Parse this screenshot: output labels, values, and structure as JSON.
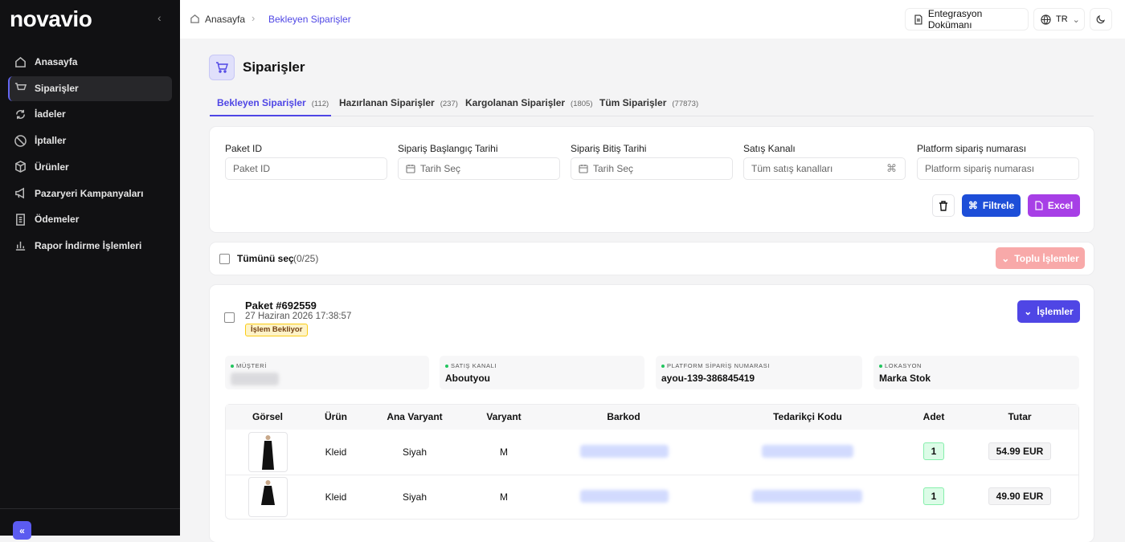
{
  "sidebar": {
    "logo": "novavio",
    "nav": [
      "Anasayfa",
      "Siparişler",
      "İadeler",
      "İptaller",
      "Ürünler",
      "Pazaryeri Kampanyaları",
      "Ödemeler",
      "Rapor İndirme İşlemleri"
    ]
  },
  "topbar": {
    "breadcrumb": [
      "Anasayfa",
      "Bekleyen Siparişler"
    ],
    "docs": "Entegrasyon Dokümanı",
    "lang": "TR"
  },
  "page": {
    "title": "Siparişler",
    "tabs": [
      {
        "label": "Bekleyen Siparişler",
        "count": "(112)"
      },
      {
        "label": "Hazırlanan Siparişler",
        "count": "(237)"
      },
      {
        "label": "Kargolanan Siparişler",
        "count": "(1805)"
      },
      {
        "label": "Tüm Siparişler",
        "count": "(77873)"
      }
    ]
  },
  "filters": {
    "fields": [
      {
        "label": "Paket ID",
        "placeholder": "Paket ID"
      },
      {
        "label": "Sipariş Başlangıç Tarihi",
        "placeholder": "Tarih Seç"
      },
      {
        "label": "Sipariş Bitiş Tarihi",
        "placeholder": "Tarih Seç"
      },
      {
        "label": "Satış Kanalı",
        "placeholder": "Tüm satış kanalları"
      },
      {
        "label": "Platform sipariş numarası",
        "placeholder": "Platform sipariş numarası"
      }
    ],
    "filter_button": "Filtrele",
    "excel_button": "Excel"
  },
  "bulk": {
    "select_all": "Tümünü seç",
    "count": "(0/25)",
    "actions": "Toplu İşlemler"
  },
  "order": {
    "title": "Paket #692559",
    "date": "27 Haziran 2026 17:38:57",
    "status": "İşlem Bekliyor",
    "actions": "İşlemler",
    "info": [
      {
        "label": "MÜŞTERİ"
      },
      {
        "label": "SATIŞ KANALI",
        "value": "Aboutyou"
      },
      {
        "label": "PLATFORM SİPARİŞ NUMARASI",
        "value": "ayou-139-386845419"
      },
      {
        "label": "LOKASYON",
        "value": "Marka Stok"
      }
    ],
    "table": {
      "columns": [
        "Görsel",
        "Ürün",
        "Ana Varyant",
        "Varyant",
        "Barkod",
        "Tedarikçi Kodu",
        "Adet",
        "Tutar"
      ],
      "rows": [
        {
          "product": "Kleid",
          "main_variant": "Siyah",
          "variant": "M",
          "quantity": 1,
          "total": "54.99 EUR"
        },
        {
          "product": "Kleid",
          "main_variant": "Siyah",
          "variant": "M",
          "quantity": 1,
          "total": "49.90 EUR"
        }
      ]
    }
  }
}
